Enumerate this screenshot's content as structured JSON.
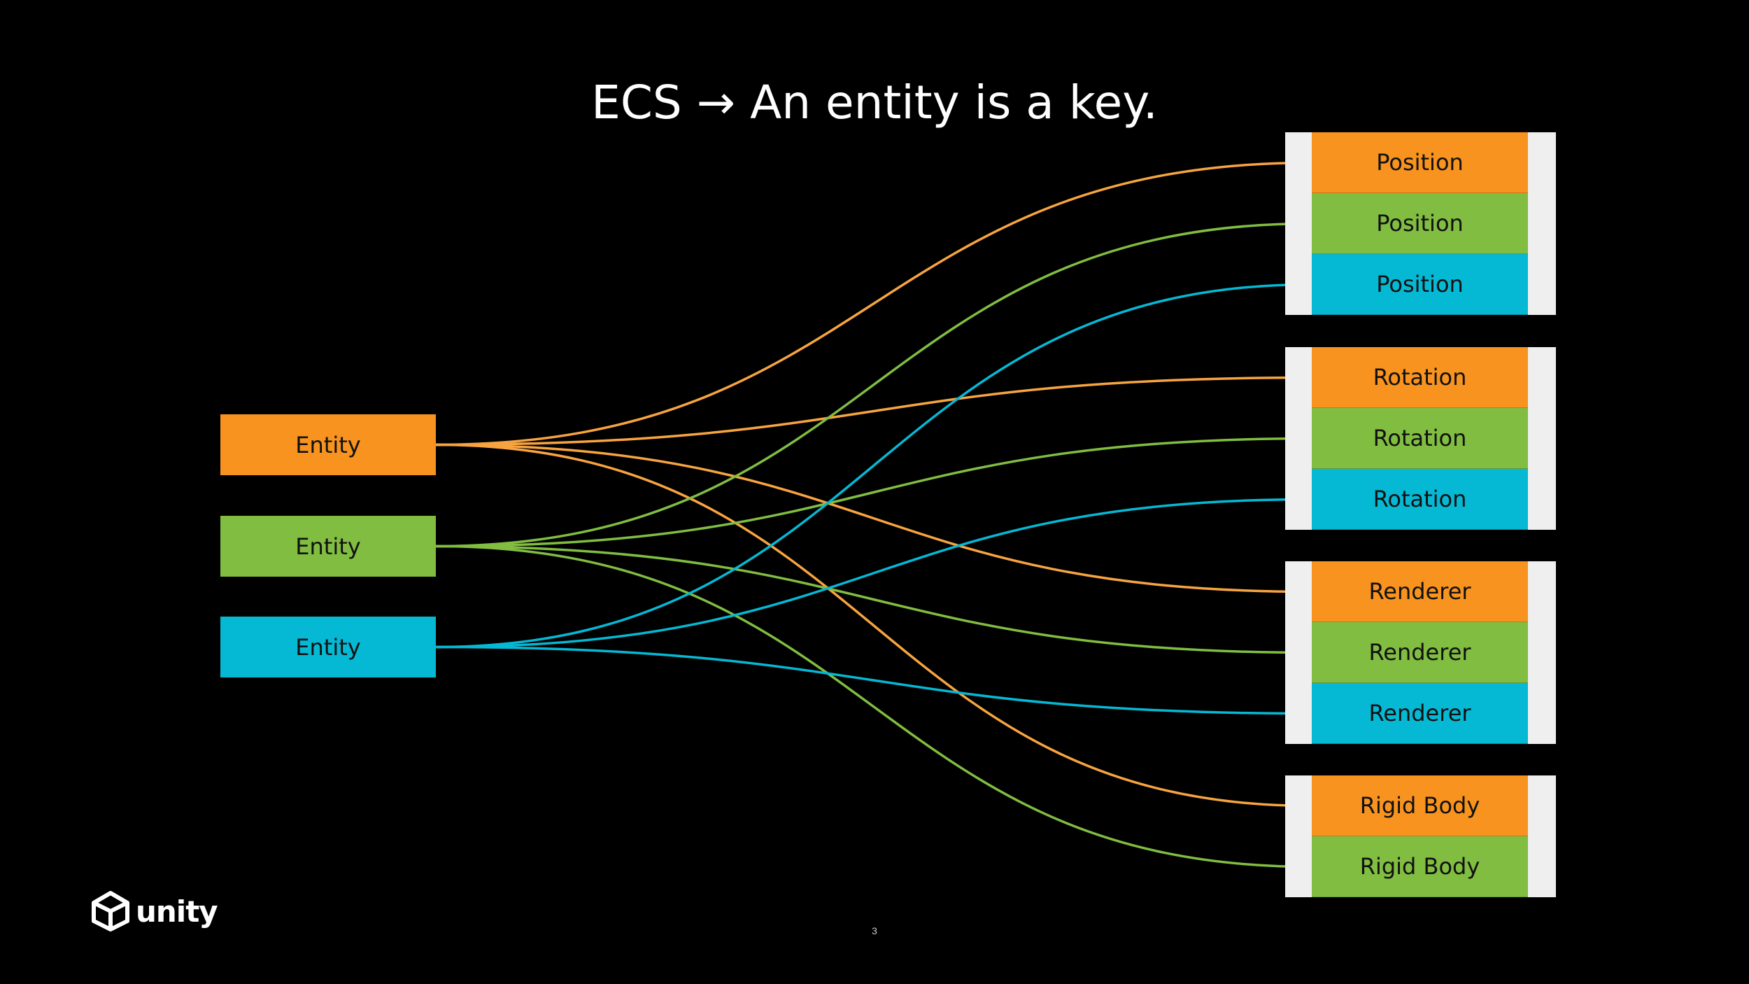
{
  "title": "ECS → An entity is a key.",
  "colors": {
    "orange": "#f7931e",
    "green": "#80bd41",
    "cyan": "#05b8d4",
    "group_bg": "#efefef",
    "background": "#000000"
  },
  "entities": [
    {
      "label": "Entity",
      "color": "orange"
    },
    {
      "label": "Entity",
      "color": "green"
    },
    {
      "label": "Entity",
      "color": "cyan"
    }
  ],
  "component_groups": [
    {
      "cells": [
        {
          "label": "Position",
          "color": "orange"
        },
        {
          "label": "Position",
          "color": "green"
        },
        {
          "label": "Position",
          "color": "cyan"
        }
      ]
    },
    {
      "cells": [
        {
          "label": "Rotation",
          "color": "orange"
        },
        {
          "label": "Rotation",
          "color": "green"
        },
        {
          "label": "Rotation",
          "color": "cyan"
        }
      ]
    },
    {
      "cells": [
        {
          "label": "Renderer",
          "color": "orange"
        },
        {
          "label": "Renderer",
          "color": "green"
        },
        {
          "label": "Renderer",
          "color": "cyan"
        }
      ]
    },
    {
      "cells": [
        {
          "label": "Rigid Body",
          "color": "orange"
        },
        {
          "label": "Rigid Body",
          "color": "green"
        }
      ]
    }
  ],
  "logo": {
    "text": "unity",
    "icon": "unity-cube-icon"
  },
  "page_number": "3"
}
